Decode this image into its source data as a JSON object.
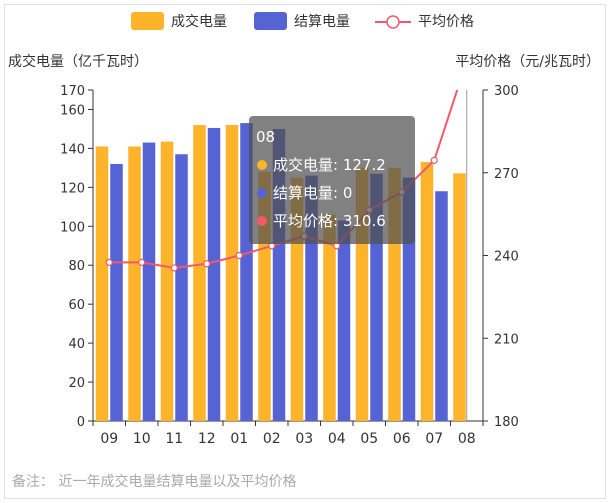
{
  "chart_data": {
    "type": "bar",
    "categories": [
      "09",
      "10",
      "11",
      "12",
      "01",
      "02",
      "03",
      "04",
      "05",
      "06",
      "07",
      "08"
    ],
    "series": [
      {
        "name": "成交电量",
        "type": "bar",
        "axis": "left",
        "color": "#fdb42a",
        "values": [
          141,
          141,
          143.5,
          152,
          152,
          128,
          125,
          106,
          130,
          130,
          133,
          127.2
        ]
      },
      {
        "name": "结算电量",
        "type": "bar",
        "axis": "left",
        "color": "#5563d4",
        "values": [
          132,
          143,
          137,
          150.5,
          153,
          150,
          126,
          103,
          127,
          125,
          118,
          0
        ]
      },
      {
        "name": "平均价格",
        "type": "line",
        "axis": "right",
        "color": "#f05a6a",
        "values": [
          237.5,
          237.5,
          235.5,
          237,
          240,
          243.5,
          247,
          243.5,
          256.5,
          263,
          274.5,
          310.6
        ]
      }
    ],
    "y_left": {
      "label": "成交电量（亿千瓦时）",
      "min": 0,
      "max": 170,
      "ticks": [
        0,
        20,
        40,
        60,
        80,
        100,
        120,
        140,
        160,
        170
      ]
    },
    "y_right": {
      "label": "平均价格（元/兆瓦时）",
      "min": 180,
      "max": 300,
      "ticks": [
        180,
        210,
        240,
        270,
        300
      ]
    },
    "legend": {
      "position": "top-center",
      "items": [
        "成交电量",
        "结算电量",
        "平均价格"
      ]
    },
    "tooltip": {
      "title": "08",
      "rows": [
        {
          "label": "成交电量",
          "value": "127.2",
          "color": "#fdb42a"
        },
        {
          "label": "结算电量",
          "value": "0",
          "color": "#5563d4"
        },
        {
          "label": "平均价格",
          "value": "310.6",
          "color": "#f05a6a"
        }
      ]
    },
    "note": "备注：  近一年成交电量结算电量以及平均价格",
    "grid": false
  }
}
